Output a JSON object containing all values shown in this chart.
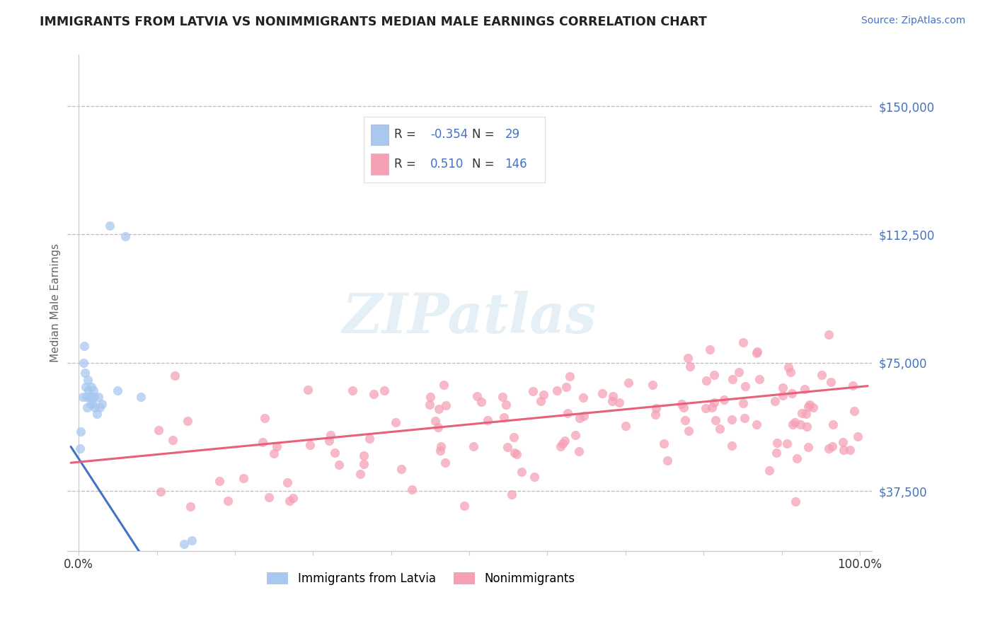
{
  "title": "IMMIGRANTS FROM LATVIA VS NONIMMIGRANTS MEDIAN MALE EARNINGS CORRELATION CHART",
  "source_text": "Source: ZipAtlas.com",
  "ylabel": "Median Male Earnings",
  "watermark": "ZIPatlas",
  "xlim": [
    -1.5,
    101.5
  ],
  "ylim": [
    20000,
    165000
  ],
  "yticks": [
    37500,
    75000,
    112500,
    150000
  ],
  "ytick_labels": [
    "$37,500",
    "$75,000",
    "$112,500",
    "$150,000"
  ],
  "xtick_positions": [
    0,
    10,
    20,
    30,
    40,
    50,
    60,
    70,
    80,
    90,
    100
  ],
  "xtick_labels_sparse": [
    "0.0%",
    "",
    "",
    "",
    "",
    "",
    "",
    "",
    "",
    "",
    "100.0%"
  ],
  "legend_R1": "-0.354",
  "legend_N1": "29",
  "legend_R2": "0.510",
  "legend_N2": "146",
  "color_immigrants": "#a8c8f0",
  "color_nonimmigrants": "#f5a0b5",
  "color_line_immigrants": "#4472c4",
  "color_line_nonimmigrants": "#e8607a",
  "title_color": "#222222",
  "source_color": "#4472c4",
  "legend_num_color": "#4472c4",
  "legend_label_color": "#333333",
  "background_color": "#ffffff",
  "grid_color": "#bbbbbb",
  "axis_color": "#cccccc"
}
